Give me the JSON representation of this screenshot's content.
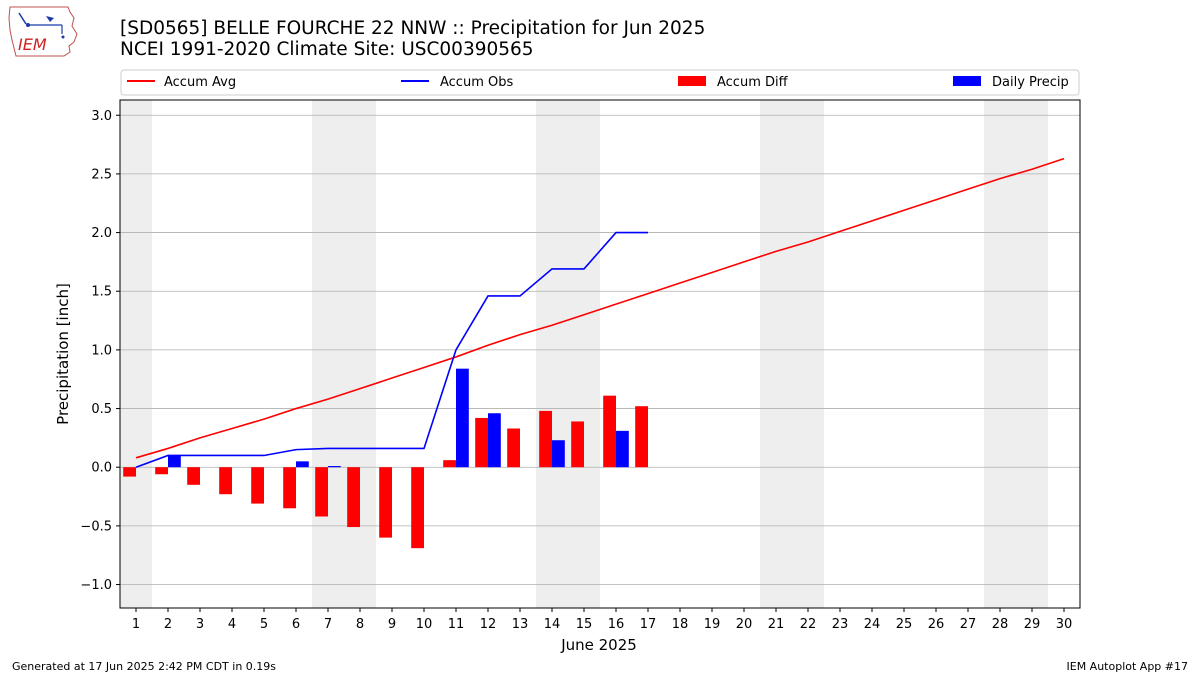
{
  "header": {
    "title_line1": "[SD0565] BELLE FOURCHE 22 NNW :: Precipitation for Jun 2025",
    "title_line2": "NCEI 1991-2020 Climate Site: USC00390565",
    "logo_text": "IEM"
  },
  "footer": {
    "left": "Generated at 17 Jun 2025 2:42 PM CDT in 0.19s",
    "right": "IEM Autoplot App #17"
  },
  "colors": {
    "avg": "#ff0000",
    "obs": "#0000ff",
    "diff": "#ff0000",
    "daily": "#0000ff",
    "weekend_band": "#eeeeee",
    "grid": "#b0b0b0"
  },
  "chart_data": {
    "type": "bar",
    "xlabel": "June 2025",
    "ylabel": "Precipitation [inch]",
    "xlim": [
      0.5,
      30.5
    ],
    "ylim": [
      -1.2,
      3.13
    ],
    "yticks": [
      -1.0,
      -0.5,
      0.0,
      0.5,
      1.0,
      1.5,
      2.0,
      2.5,
      3.0
    ],
    "ytick_labels": [
      "−1.0",
      "−0.5",
      "0.0",
      "0.5",
      "1.0",
      "1.5",
      "2.0",
      "2.5",
      "3.0"
    ],
    "days": [
      1,
      2,
      3,
      4,
      5,
      6,
      7,
      8,
      9,
      10,
      11,
      12,
      13,
      14,
      15,
      16,
      17,
      18,
      19,
      20,
      21,
      22,
      23,
      24,
      25,
      26,
      27,
      28,
      29,
      30
    ],
    "weekend_ranges": [
      [
        0.5,
        1.5
      ],
      [
        6.5,
        8.5
      ],
      [
        13.5,
        15.5
      ],
      [
        20.5,
        22.5
      ],
      [
        27.5,
        29.5
      ]
    ],
    "grid": true,
    "legend_position": "top",
    "legend": [
      "Accum Avg",
      "Accum Obs",
      "Accum Diff",
      "Daily Precip"
    ],
    "series": [
      {
        "name": "Accum Avg",
        "kind": "line",
        "x": [
          1,
          2,
          3,
          4,
          5,
          6,
          7,
          8,
          9,
          10,
          11,
          12,
          13,
          14,
          15,
          16,
          17,
          18,
          19,
          20,
          21,
          22,
          23,
          24,
          25,
          26,
          27,
          28,
          29,
          30
        ],
        "values": [
          0.08,
          0.16,
          0.25,
          0.33,
          0.41,
          0.5,
          0.58,
          0.67,
          0.76,
          0.85,
          0.94,
          1.04,
          1.13,
          1.21,
          1.3,
          1.39,
          1.48,
          1.57,
          1.66,
          1.75,
          1.84,
          1.92,
          2.01,
          2.1,
          2.19,
          2.28,
          2.37,
          2.46,
          2.54,
          2.63
        ]
      },
      {
        "name": "Accum Obs",
        "kind": "line",
        "x": [
          1,
          2,
          3,
          4,
          5,
          6,
          7,
          8,
          9,
          10,
          11,
          12,
          13,
          14,
          15,
          16,
          17
        ],
        "values": [
          0.0,
          0.1,
          0.1,
          0.1,
          0.1,
          0.15,
          0.16,
          0.16,
          0.16,
          0.16,
          1.0,
          1.46,
          1.46,
          1.69,
          1.69,
          2.0,
          2.0
        ]
      },
      {
        "name": "Accum Diff",
        "kind": "bar",
        "x": [
          1,
          2,
          3,
          4,
          5,
          6,
          7,
          8,
          9,
          10,
          11,
          12,
          13,
          14,
          15,
          16,
          17
        ],
        "values": [
          -0.08,
          -0.06,
          -0.15,
          -0.23,
          -0.31,
          -0.35,
          -0.42,
          -0.51,
          -0.6,
          -0.69,
          0.06,
          0.42,
          0.33,
          0.48,
          0.39,
          0.61,
          0.52
        ]
      },
      {
        "name": "Daily Precip",
        "kind": "bar",
        "x": [
          2,
          6,
          7,
          11,
          12,
          14,
          16
        ],
        "values": [
          0.1,
          0.05,
          0.01,
          0.84,
          0.46,
          0.23,
          0.31
        ]
      }
    ]
  }
}
